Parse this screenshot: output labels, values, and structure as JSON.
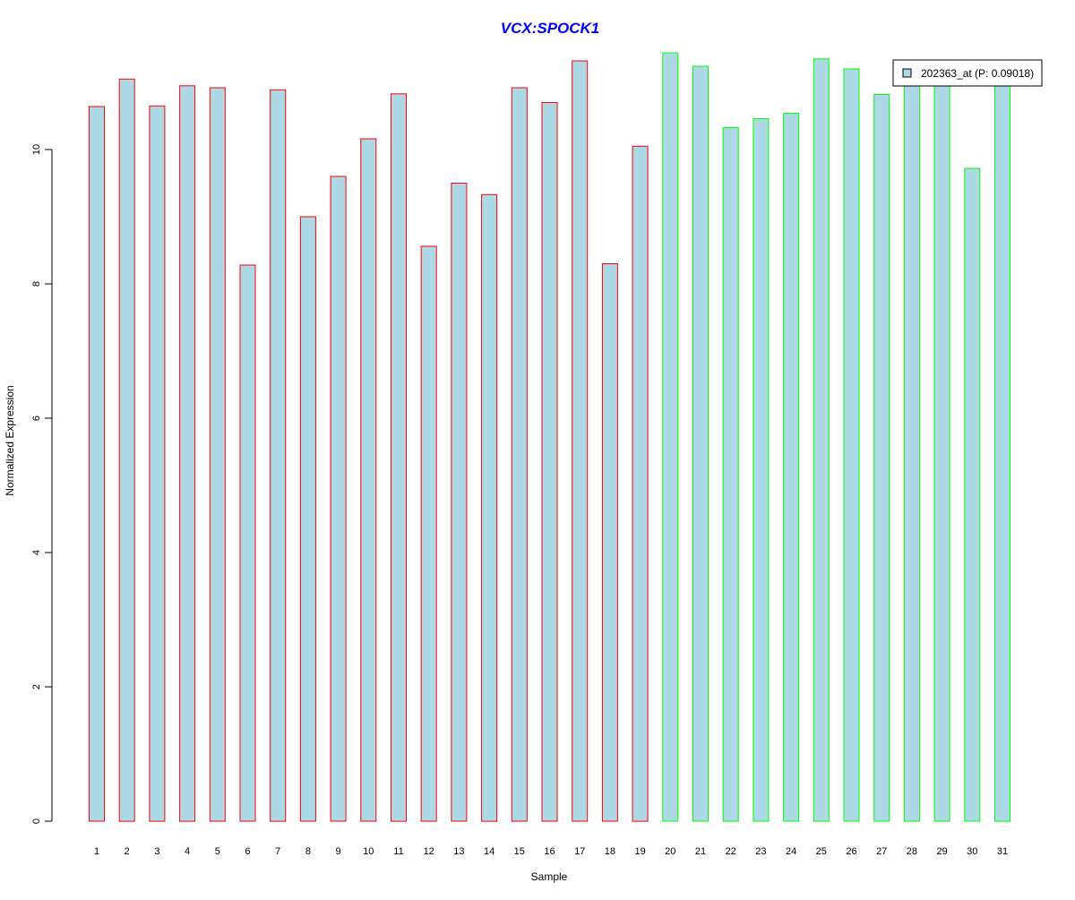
{
  "chart_data": {
    "type": "bar",
    "title": "VCX:SPOCK1",
    "xlabel": "Sample",
    "ylabel": "Normalized Expression",
    "ylim": [
      0,
      11.6
    ],
    "yticks": [
      0,
      2,
      4,
      6,
      8,
      10
    ],
    "categories": [
      "1",
      "2",
      "3",
      "4",
      "5",
      "6",
      "7",
      "8",
      "9",
      "10",
      "11",
      "12",
      "13",
      "14",
      "15",
      "16",
      "17",
      "18",
      "19",
      "20",
      "21",
      "22",
      "23",
      "24",
      "25",
      "26",
      "27",
      "28",
      "29",
      "30",
      "31"
    ],
    "series": [
      {
        "name": "202363_at (P: 0.09018)",
        "values": [
          10.64,
          11.05,
          10.65,
          10.95,
          10.92,
          8.28,
          10.89,
          9.0,
          9.6,
          10.16,
          10.83,
          8.56,
          9.5,
          9.33,
          10.92,
          10.7,
          11.32,
          8.3,
          10.05,
          11.44,
          11.24,
          10.33,
          10.46,
          10.54,
          11.35,
          11.2,
          10.82,
          11.05,
          11.05,
          9.72,
          11.05
        ]
      }
    ],
    "bar_fill": "#add8e6",
    "group_border_colors": [
      "#ff0000",
      "#ff0000",
      "#ff0000",
      "#ff0000",
      "#ff0000",
      "#ff0000",
      "#ff0000",
      "#ff0000",
      "#ff0000",
      "#ff0000",
      "#ff0000",
      "#ff0000",
      "#ff0000",
      "#ff0000",
      "#ff0000",
      "#ff0000",
      "#ff0000",
      "#ff0000",
      "#ff0000",
      "#00ff00",
      "#00ff00",
      "#00ff00",
      "#00ff00",
      "#00ff00",
      "#00ff00",
      "#00ff00",
      "#00ff00",
      "#00ff00",
      "#00ff00",
      "#00ff00",
      "#00ff00"
    ],
    "title_color": "#0000ff",
    "legend_position": "top-right",
    "grid": false
  }
}
